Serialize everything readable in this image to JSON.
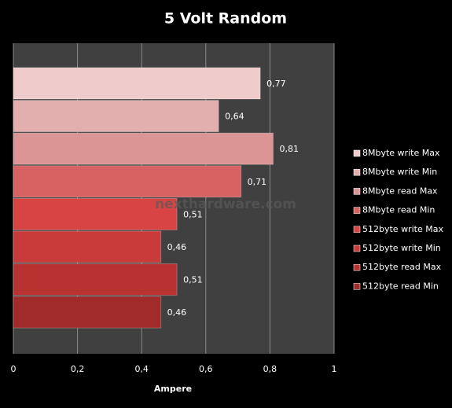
{
  "chart_data": {
    "type": "bar",
    "orientation": "horizontal",
    "title": "5 Volt Random",
    "x_label": "Ampere",
    "watermark": "nexthardware.com",
    "xlim": [
      0,
      1
    ],
    "xticks": [
      0,
      {
        "value": 0.2,
        "label": "0,2"
      },
      {
        "value": 0.4,
        "label": "0,4"
      },
      {
        "value": 0.6,
        "label": "0,6"
      },
      {
        "value": 0.8,
        "label": "0,8"
      },
      1
    ],
    "grid": true,
    "legend": "right",
    "series": [
      {
        "name": "8Mbyte write  Max",
        "color": "#efcbcb",
        "values": [
          0.77
        ],
        "value_labels": [
          "0,77"
        ]
      },
      {
        "name": "8Mbyte write  Min",
        "color": "#e3aeae",
        "values": [
          0.64
        ],
        "value_labels": [
          "0,64"
        ]
      },
      {
        "name": "8Mbyte read Max",
        "color": "#db9595",
        "values": [
          0.81
        ],
        "value_labels": [
          "0,81"
        ]
      },
      {
        "name": "8Mbyte read Min",
        "color": "#d86262",
        "values": [
          0.71
        ],
        "value_labels": [
          "0,71"
        ]
      },
      {
        "name": "512byte write Max",
        "color": "#d84444",
        "values": [
          0.51
        ],
        "value_labels": [
          "0,51"
        ]
      },
      {
        "name": "512byte write Min",
        "color": "#c93b3b",
        "values": [
          0.46
        ],
        "value_labels": [
          "0,46"
        ]
      },
      {
        "name": "512byte read Max",
        "color": "#b83232",
        "values": [
          0.51
        ],
        "value_labels": [
          "0,51"
        ]
      },
      {
        "name": "512byte read Min",
        "color": "#a12a2a",
        "values": [
          0.46
        ],
        "value_labels": [
          "0,46"
        ]
      }
    ]
  }
}
